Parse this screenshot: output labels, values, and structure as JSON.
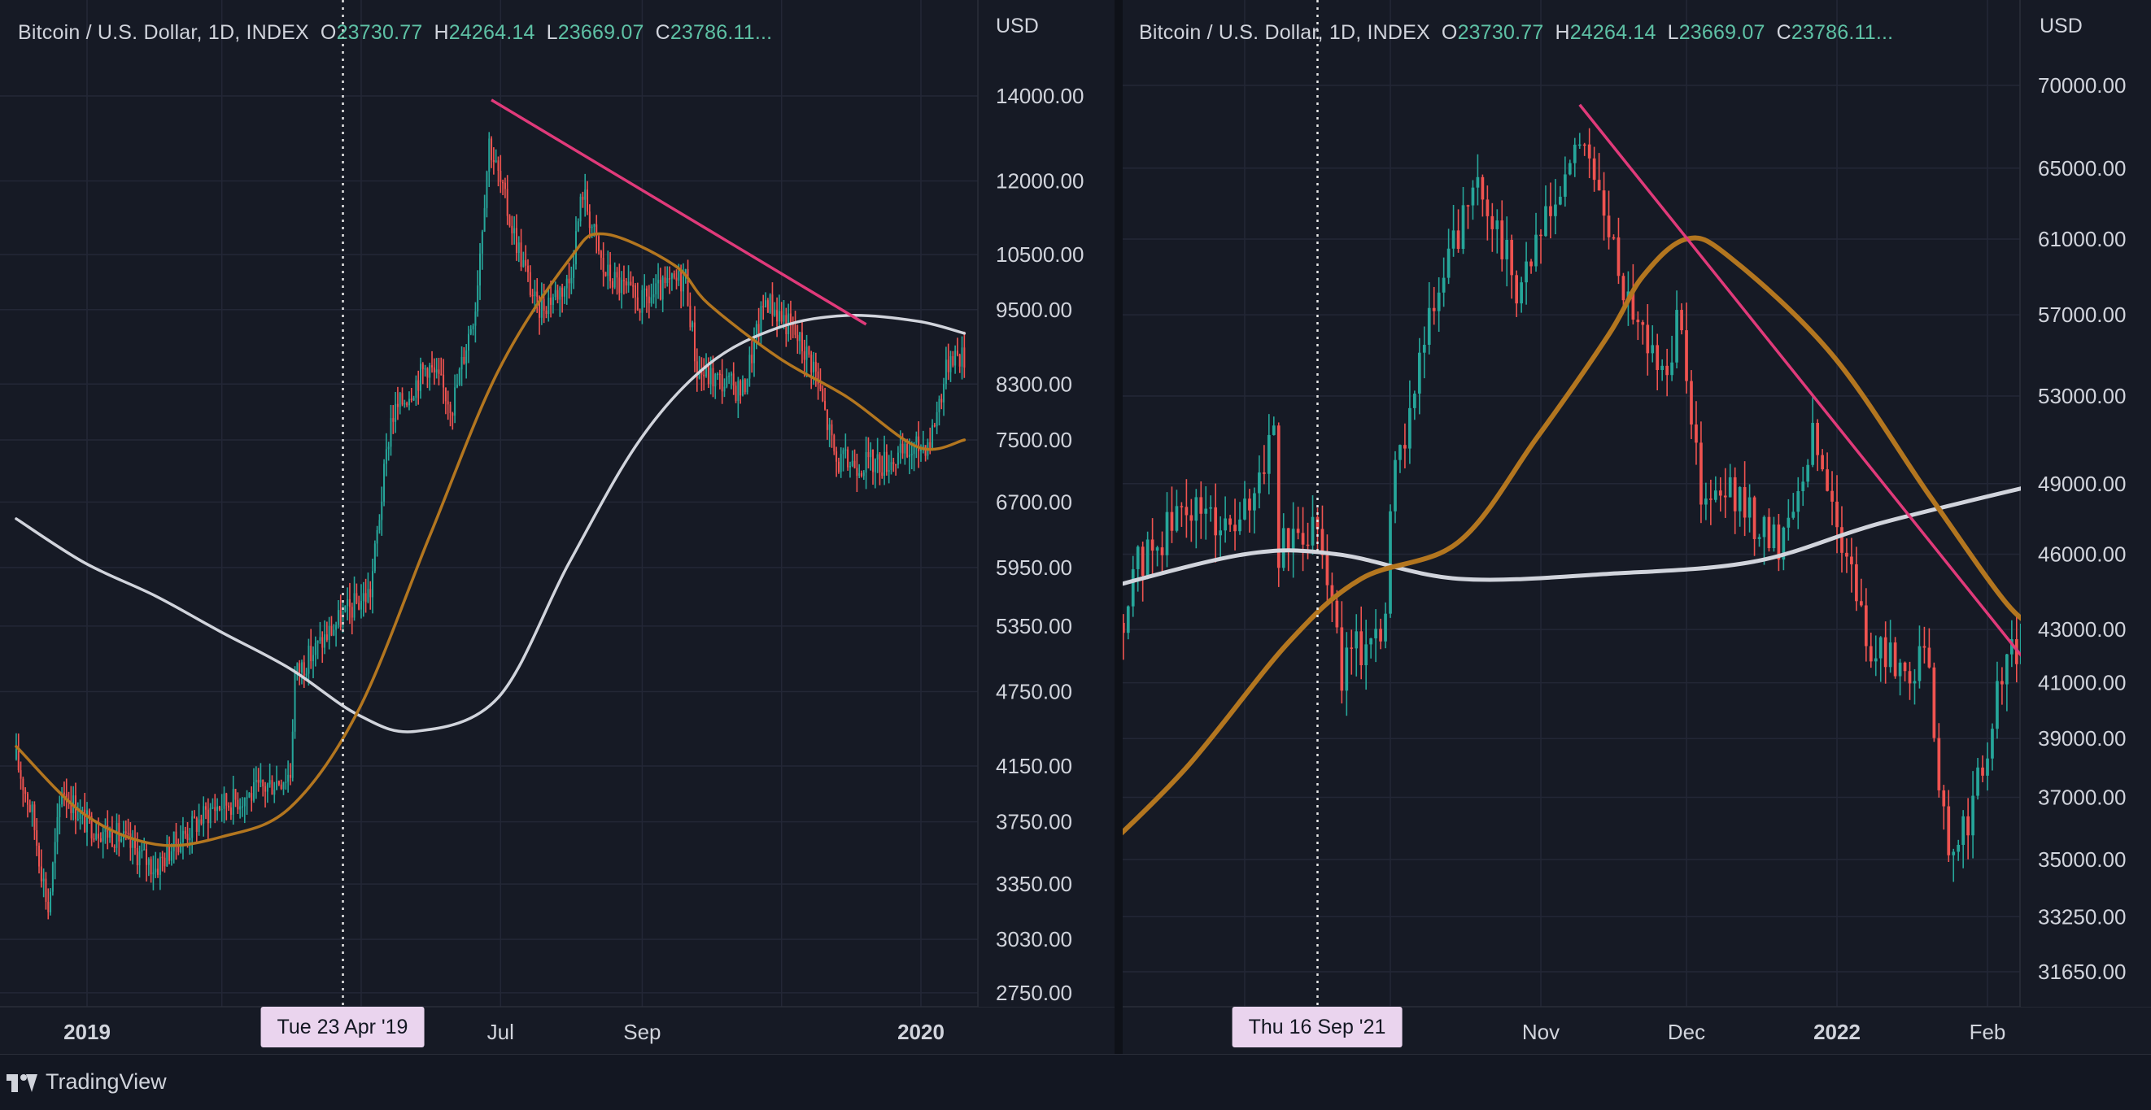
{
  "colors": {
    "background": "#161a25",
    "grid": "#232736",
    "up": "#26a69a",
    "down": "#ef5350",
    "ma_short": "#b3761f",
    "ma_long": "#d1d4dc",
    "trendline": "#e03a7a",
    "axis_text": "#d1d4dc"
  },
  "branding": {
    "logo_text": "TradingView",
    "logo_icon": "tradingview-logo-icon"
  },
  "charts": [
    {
      "legend": {
        "title": "Bitcoin / U.S. Dollar, 1D, INDEX",
        "open_label": "O",
        "open": "23730.77",
        "high_label": "H",
        "high": "24264.14",
        "low_label": "L",
        "low": "23669.07",
        "close_label": "C",
        "close": "23786.11..."
      },
      "currency": "USD",
      "crosshair_label": "Tue 23 Apr '19",
      "y_ticks": [
        "14000.00",
        "12000.00",
        "10500.00",
        "9500.00",
        "8300.00",
        "7500.00",
        "6700.00",
        "5950.00",
        "5350.00",
        "4750.00",
        "4150.00",
        "3750.00",
        "3350.00",
        "3030.00",
        "2750.00"
      ],
      "x_ticks": [
        {
          "label": "2019",
          "bold": true
        },
        {
          "label": "Jul",
          "bold": false
        },
        {
          "label": "Sep",
          "bold": false
        },
        {
          "label": "2020",
          "bold": true
        }
      ]
    },
    {
      "legend": {
        "title": "Bitcoin / U.S. Dollar, 1D, INDEX",
        "open_label": "O",
        "open": "23730.77",
        "high_label": "H",
        "high": "24264.14",
        "low_label": "L",
        "low": "23669.07",
        "close_label": "C",
        "close": "23786.11..."
      },
      "currency": "USD",
      "crosshair_label": "Thu 16 Sep '21",
      "y_ticks": [
        "70000.00",
        "65000.00",
        "61000.00",
        "57000.00",
        "53000.00",
        "49000.00",
        "46000.00",
        "43000.00",
        "41000.00",
        "39000.00",
        "37000.00",
        "35000.00",
        "33250.00",
        "31650.00"
      ],
      "x_ticks": [
        {
          "label": "Nov",
          "bold": false
        },
        {
          "label": "Dec",
          "bold": false
        },
        {
          "label": "2022",
          "bold": true
        },
        {
          "label": "Feb",
          "bold": false
        }
      ]
    }
  ],
  "chart_data": [
    {
      "type": "candlestick",
      "title": "Bitcoin / U.S. Dollar, 1D, INDEX",
      "scale": "log",
      "ylim": [
        2650,
        15000
      ],
      "x_range": [
        "2018-12-01",
        "2020-01-20"
      ],
      "y_unit": "USD",
      "price_path": [
        [
          "2018-12-01",
          4200
        ],
        [
          "2018-12-08",
          3800
        ],
        [
          "2018-12-15",
          3200
        ],
        [
          "2018-12-21",
          4000
        ],
        [
          "2018-12-31",
          3750
        ],
        [
          "2019-01-15",
          3650
        ],
        [
          "2019-01-31",
          3450
        ],
        [
          "2019-02-08",
          3600
        ],
        [
          "2019-02-25",
          3850
        ],
        [
          "2019-03-15",
          3950
        ],
        [
          "2019-03-31",
          4100
        ],
        [
          "2019-04-02",
          4900
        ],
        [
          "2019-04-23",
          5450
        ],
        [
          "2019-05-05",
          5700
        ],
        [
          "2019-05-14",
          7800
        ],
        [
          "2019-05-30",
          8600
        ],
        [
          "2019-06-10",
          8000
        ],
        [
          "2019-06-20",
          9600
        ],
        [
          "2019-06-26",
          12900
        ],
        [
          "2019-07-05",
          11200
        ],
        [
          "2019-07-17",
          9500
        ],
        [
          "2019-07-31",
          10000
        ],
        [
          "2019-08-06",
          11800
        ],
        [
          "2019-08-15",
          10200
        ],
        [
          "2019-08-31",
          9600
        ],
        [
          "2019-09-20",
          10100
        ],
        [
          "2019-09-25",
          8500
        ],
        [
          "2019-10-15",
          8200
        ],
        [
          "2019-10-25",
          9700
        ],
        [
          "2019-11-05",
          9200
        ],
        [
          "2019-11-15",
          8600
        ],
        [
          "2019-11-25",
          7200
        ],
        [
          "2019-12-15",
          7200
        ],
        [
          "2019-12-25",
          7300
        ],
        [
          "2020-01-05",
          7500
        ],
        [
          "2020-01-14",
          8800
        ],
        [
          "2020-01-20",
          8700
        ]
      ],
      "ma_short": [
        [
          "2018-12-01",
          4300
        ],
        [
          "2018-12-31",
          3800
        ],
        [
          "2019-01-31",
          3600
        ],
        [
          "2019-03-01",
          3650
        ],
        [
          "2019-03-31",
          3850
        ],
        [
          "2019-04-30",
          4600
        ],
        [
          "2019-05-31",
          6300
        ],
        [
          "2019-06-30",
          8500
        ],
        [
          "2019-07-31",
          10400
        ],
        [
          "2019-08-15",
          10900
        ],
        [
          "2019-09-15",
          10300
        ],
        [
          "2019-09-30",
          9600
        ],
        [
          "2019-10-31",
          8700
        ],
        [
          "2019-11-30",
          8100
        ],
        [
          "2019-12-31",
          7400
        ],
        [
          "2020-01-20",
          7500
        ]
      ],
      "ma_long": [
        [
          "2018-12-01",
          6500
        ],
        [
          "2018-12-31",
          6000
        ],
        [
          "2019-01-31",
          5650
        ],
        [
          "2019-02-28",
          5300
        ],
        [
          "2019-03-31",
          4950
        ],
        [
          "2019-04-30",
          4550
        ],
        [
          "2019-05-25",
          4420
        ],
        [
          "2019-06-30",
          4700
        ],
        [
          "2019-07-31",
          6000
        ],
        [
          "2019-08-31",
          7500
        ],
        [
          "2019-09-30",
          8600
        ],
        [
          "2019-10-31",
          9200
        ],
        [
          "2019-11-30",
          9400
        ],
        [
          "2019-12-31",
          9300
        ],
        [
          "2020-01-20",
          9100
        ]
      ],
      "trendline": [
        [
          "2019-06-27",
          13900
        ],
        [
          "2019-12-08",
          9250
        ]
      ],
      "crosshair_date": "2019-04-23"
    },
    {
      "type": "candlestick",
      "title": "Bitcoin / U.S. Dollar, 1D, INDEX",
      "scale": "log",
      "ylim": [
        30500,
        74000
      ],
      "x_range": [
        "2021-08-01",
        "2022-02-12"
      ],
      "y_unit": "USD",
      "price_path": [
        [
          "2021-08-01",
          39500
        ],
        [
          "2021-08-10",
          45500
        ],
        [
          "2021-08-20",
          48000
        ],
        [
          "2021-08-31",
          47000
        ],
        [
          "2021-09-07",
          51500
        ],
        [
          "2021-09-08",
          46000
        ],
        [
          "2021-09-16",
          47700
        ],
        [
          "2021-09-21",
          41500
        ],
        [
          "2021-09-30",
          43500
        ],
        [
          "2021-10-01",
          48000
        ],
        [
          "2021-10-06",
          54000
        ],
        [
          "2021-10-15",
          61500
        ],
        [
          "2021-10-20",
          64000
        ],
        [
          "2021-10-27",
          58500
        ],
        [
          "2021-11-01",
          61000
        ],
        [
          "2021-11-10",
          67000
        ],
        [
          "2021-11-16",
          60000
        ],
        [
          "2021-11-26",
          54000
        ],
        [
          "2021-11-30",
          57000
        ],
        [
          "2021-12-04",
          48000
        ],
        [
          "2021-12-10",
          48500
        ],
        [
          "2021-12-20",
          46500
        ],
        [
          "2021-12-27",
          51000
        ],
        [
          "2022-01-01",
          47500
        ],
        [
          "2022-01-08",
          42000
        ],
        [
          "2022-01-20",
          41500
        ],
        [
          "2022-01-24",
          34500
        ],
        [
          "2022-02-01",
          38500
        ],
        [
          "2022-02-04",
          41500
        ],
        [
          "2022-02-12",
          43500
        ]
      ],
      "ma_short": [
        [
          "2021-08-01",
          35000
        ],
        [
          "2021-08-20",
          38000
        ],
        [
          "2021-09-10",
          42500
        ],
        [
          "2021-09-25",
          45000
        ],
        [
          "2021-10-15",
          46500
        ],
        [
          "2021-10-31",
          51000
        ],
        [
          "2021-11-15",
          56000
        ],
        [
          "2021-11-22",
          59000
        ],
        [
          "2021-12-01",
          61000
        ],
        [
          "2021-12-10",
          60000
        ],
        [
          "2021-12-31",
          55000
        ],
        [
          "2022-01-20",
          48500
        ],
        [
          "2022-02-05",
          44000
        ],
        [
          "2022-02-12",
          43000
        ]
      ],
      "ma_long": [
        [
          "2021-08-01",
          44500
        ],
        [
          "2021-09-01",
          46000
        ],
        [
          "2021-09-20",
          46000
        ],
        [
          "2021-10-15",
          45000
        ],
        [
          "2021-11-15",
          45200
        ],
        [
          "2021-12-15",
          45700
        ],
        [
          "2022-01-10",
          47300
        ],
        [
          "2022-02-12",
          49000
        ]
      ],
      "trendline": [
        [
          "2021-11-09",
          68800
        ],
        [
          "2022-02-08",
          42000
        ]
      ],
      "crosshair_date": "2021-09-16"
    }
  ]
}
